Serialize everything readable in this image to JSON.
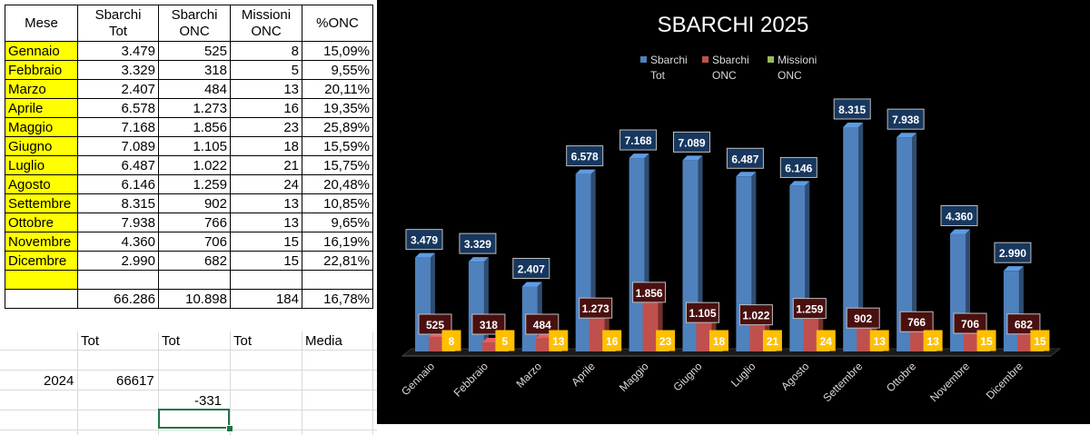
{
  "table": {
    "headers": [
      [
        "Mese",
        ""
      ],
      [
        "Sbarchi",
        "Tot"
      ],
      [
        "Sbarchi",
        "ONC"
      ],
      [
        "Missioni",
        "ONC"
      ],
      [
        "%ONC",
        ""
      ]
    ],
    "rows": [
      [
        "Gennaio",
        "3.479",
        "525",
        "8",
        "15,09%"
      ],
      [
        "Febbraio",
        "3.329",
        "318",
        "5",
        "9,55%"
      ],
      [
        "Marzo",
        "2.407",
        "484",
        "13",
        "20,11%"
      ],
      [
        "Aprile",
        "6.578",
        "1.273",
        "16",
        "19,35%"
      ],
      [
        "Maggio",
        "7.168",
        "1.856",
        "23",
        "25,89%"
      ],
      [
        "Giugno",
        "7.089",
        "1.105",
        "18",
        "15,59%"
      ],
      [
        "Luglio",
        "6.487",
        "1.022",
        "21",
        "15,75%"
      ],
      [
        "Agosto",
        "6.146",
        "1.259",
        "24",
        "20,48%"
      ],
      [
        "Settembre",
        "8.315",
        "902",
        "13",
        "10,85%"
      ],
      [
        "Ottobre",
        "7.938",
        "766",
        "13",
        "9,65%"
      ],
      [
        "Novembre",
        "4.360",
        "706",
        "15",
        "16,19%"
      ],
      [
        "Dicembre",
        "2.990",
        "682",
        "15",
        "22,81%"
      ]
    ],
    "totals": [
      "",
      "66.286",
      "10.898",
      "184",
      "16,78%"
    ],
    "footer_labels": [
      "Tot",
      "Tot",
      "Tot",
      "Media"
    ],
    "year_label": "2024",
    "year_value": "66617",
    "difference": "-331"
  },
  "chart_data": {
    "type": "bar",
    "title": "SBARCHI 2025",
    "categories": [
      "Gennaio",
      "Febbraio",
      "Marzo",
      "Aprile",
      "Maggio",
      "Giugno",
      "Luglio",
      "Agosto",
      "Settembre",
      "Ottobre",
      "Novembre",
      "Dicembre"
    ],
    "series": [
      {
        "name": "Sbarchi Tot",
        "color": "#4f81bd",
        "values": [
          3479,
          3329,
          2407,
          6578,
          7168,
          7089,
          6487,
          6146,
          8315,
          7938,
          4360,
          2990
        ],
        "labels": [
          "3.479",
          "3.329",
          "2.407",
          "6.578",
          "7.168",
          "7.089",
          "6.487",
          "6.146",
          "8.315",
          "7.938",
          "4.360",
          "2.990"
        ]
      },
      {
        "name": "Sbarchi ONC",
        "color": "#c0504d",
        "values": [
          525,
          318,
          484,
          1273,
          1856,
          1105,
          1022,
          1259,
          902,
          766,
          706,
          682
        ],
        "labels": [
          "525",
          "318",
          "484",
          "1.273",
          "1.856",
          "1.105",
          "1.022",
          "1.259",
          "902",
          "766",
          "706",
          "682"
        ]
      },
      {
        "name": "Missioni ONC",
        "color": "#9bbb59",
        "values": [
          8,
          5,
          13,
          16,
          23,
          18,
          21,
          24,
          13,
          13,
          15,
          15
        ],
        "labels": [
          "8",
          "5",
          "13",
          "16",
          "23",
          "18",
          "21",
          "24",
          "13",
          "13",
          "15",
          "15"
        ]
      }
    ],
    "legend": [
      "Sbarchi Tot",
      "Sbarchi ONC",
      "Missioni ONC"
    ],
    "legend_position": "top",
    "ylim": [
      0,
      9000
    ],
    "grid": false
  }
}
